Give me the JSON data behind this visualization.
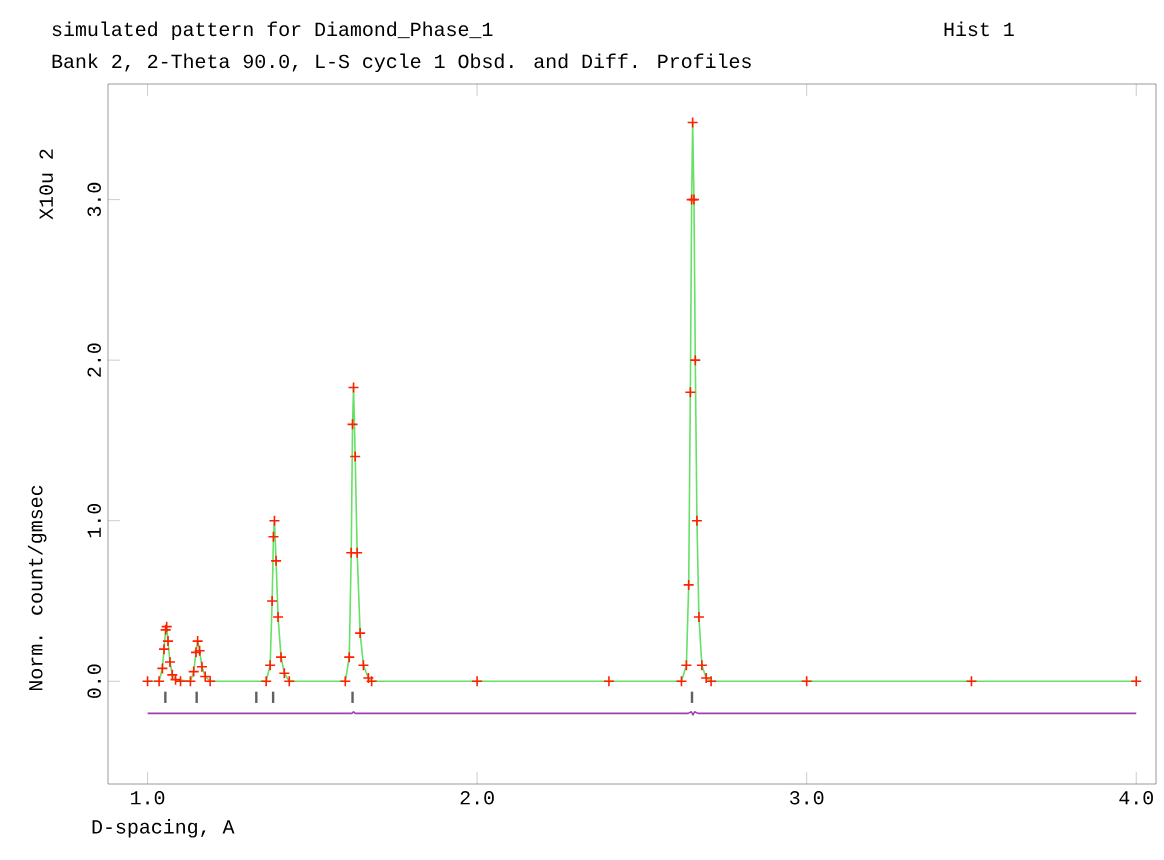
{
  "chart_data": {
    "type": "line",
    "title": "simulated pattern for Diamond_Phase_1",
    "subtitle": "Bank 2, 2-Theta 90.0, L-S cycle 1 Obsd. and Diff. Profiles",
    "xlabel": "D-spacing, A",
    "ylabel": "Norm. count/gmsec",
    "annotations": [
      "Hist 1",
      "X10u 2"
    ],
    "xlim": [
      0.88,
      4.06
    ],
    "ylim": [
      -0.64,
      3.72
    ],
    "xticks": [
      {
        "value": 1,
        "label": "1.0"
      },
      {
        "value": 2,
        "label": "2.0"
      },
      {
        "value": 3,
        "label": "3.0"
      },
      {
        "value": 4,
        "label": "4.0"
      }
    ],
    "yticks": [
      {
        "value": 0,
        "label": "0.0"
      },
      {
        "value": 1,
        "label": "1.0"
      },
      {
        "value": 2,
        "label": "2.0"
      },
      {
        "value": 3,
        "label": "3.0"
      }
    ],
    "grid": false,
    "series": [
      {
        "type": "scatter",
        "marker": "cross",
        "color": "#ff2000",
        "x": [
          1.0,
          1.035,
          1.045,
          1.05,
          1.055,
          1.058,
          1.062,
          1.068,
          1.075,
          1.085,
          1.1,
          1.13,
          1.14,
          1.147,
          1.152,
          1.158,
          1.165,
          1.175,
          1.19,
          1.36,
          1.372,
          1.378,
          1.382,
          1.385,
          1.39,
          1.396,
          1.405,
          1.415,
          1.43,
          1.6,
          1.612,
          1.618,
          1.622,
          1.625,
          1.63,
          1.636,
          1.645,
          1.655,
          1.67,
          1.68,
          2.0,
          2.4,
          2.62,
          2.635,
          2.642,
          2.647,
          2.651,
          2.654,
          2.658,
          2.662,
          2.667,
          2.673,
          2.682,
          2.695,
          2.71,
          3.0,
          3.5,
          4.0
        ],
        "values": [
          0,
          0,
          0.08,
          0.2,
          0.32,
          0.34,
          0.25,
          0.12,
          0.04,
          0.01,
          0,
          0,
          0.06,
          0.18,
          0.25,
          0.19,
          0.09,
          0.03,
          0,
          0,
          0.1,
          0.5,
          0.9,
          1.0,
          0.75,
          0.4,
          0.15,
          0.05,
          0,
          0,
          0.15,
          0.8,
          1.6,
          1.83,
          1.4,
          0.8,
          0.3,
          0.1,
          0.02,
          0,
          0,
          0,
          0,
          0.1,
          0.6,
          1.8,
          3.0,
          3.48,
          3.0,
          2.0,
          1.0,
          0.4,
          0.1,
          0.02,
          0,
          0,
          0,
          0
        ]
      },
      {
        "marker": "none",
        "color": "#66e066",
        "x": [
          1.0,
          1.035,
          1.045,
          1.05,
          1.055,
          1.058,
          1.062,
          1.068,
          1.075,
          1.085,
          1.13,
          1.14,
          1.147,
          1.152,
          1.158,
          1.165,
          1.175,
          1.19,
          1.36,
          1.372,
          1.378,
          1.382,
          1.385,
          1.39,
          1.396,
          1.405,
          1.415,
          1.43,
          1.6,
          1.612,
          1.618,
          1.622,
          1.625,
          1.63,
          1.636,
          1.645,
          1.655,
          1.67,
          1.68,
          2.62,
          2.635,
          2.642,
          2.647,
          2.651,
          2.654,
          2.658,
          2.662,
          2.667,
          2.673,
          2.682,
          2.695,
          2.71,
          4.0
        ],
        "values": [
          0,
          0,
          0.08,
          0.2,
          0.32,
          0.34,
          0.25,
          0.12,
          0.04,
          0.01,
          0,
          0.06,
          0.18,
          0.25,
          0.19,
          0.09,
          0.03,
          0,
          0,
          0.1,
          0.5,
          0.9,
          1.0,
          0.75,
          0.4,
          0.15,
          0.05,
          0,
          0,
          0.15,
          0.8,
          1.6,
          1.83,
          1.4,
          0.8,
          0.3,
          0.1,
          0.02,
          0,
          0,
          0.1,
          0.6,
          1.8,
          3.0,
          3.48,
          3.0,
          2.0,
          1.0,
          0.4,
          0.1,
          0.02,
          0,
          0
        ]
      },
      {
        "marker": "none",
        "color": "#a040b0",
        "x": [
          1.0,
          1.62,
          1.625,
          1.63,
          2.64,
          2.65,
          2.655,
          2.66,
          2.67,
          4.0
        ],
        "values": [
          -0.2,
          -0.2,
          -0.19,
          -0.2,
          -0.2,
          -0.19,
          -0.21,
          -0.19,
          -0.2,
          -0.2
        ]
      },
      {
        "type": "bar",
        "color": "#606060",
        "x": [
          1.054,
          1.149,
          1.33,
          1.381,
          1.622,
          2.652
        ],
        "base": [
          -0.135,
          -0.135,
          -0.135,
          -0.135,
          -0.135,
          -0.135
        ],
        "values": [
          0.07,
          0.07,
          0.07,
          0.07,
          0.07,
          0.07
        ]
      }
    ]
  }
}
